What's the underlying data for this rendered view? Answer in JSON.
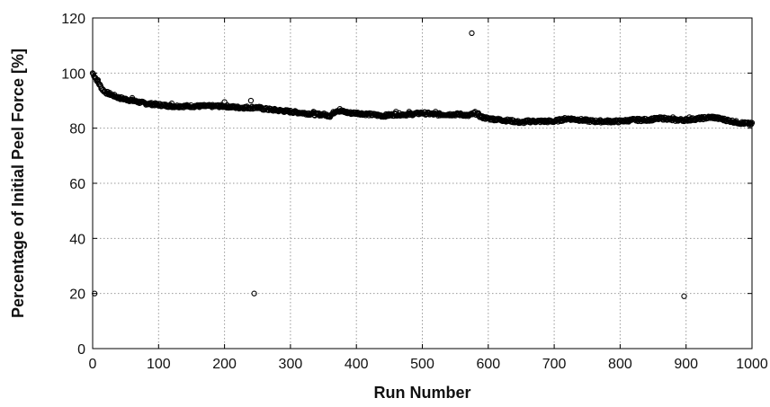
{
  "chart_data": {
    "type": "scatter",
    "title": "",
    "xlabel": "Run Number",
    "ylabel": "Percentage of Initial Peel Force [%]",
    "xlim": [
      0,
      1000
    ],
    "ylim": [
      0,
      120
    ],
    "xticks": [
      0,
      100,
      200,
      300,
      400,
      500,
      600,
      700,
      800,
      900,
      1000
    ],
    "yticks": [
      0,
      20,
      40,
      60,
      80,
      100,
      120
    ],
    "grid": true,
    "legend": "none",
    "marker": "open-circle",
    "trend_series": {
      "x": [
        0,
        5,
        10,
        15,
        20,
        30,
        40,
        50,
        60,
        80,
        100,
        120,
        150,
        180,
        200,
        220,
        240,
        250,
        260,
        280,
        300,
        320,
        340,
        350,
        360,
        370,
        380,
        390,
        400,
        420,
        440,
        460,
        480,
        500,
        520,
        540,
        560,
        570,
        580,
        590,
        600,
        620,
        640,
        650,
        660,
        680,
        700,
        720,
        740,
        760,
        780,
        800,
        820,
        840,
        860,
        870,
        880,
        900,
        920,
        940,
        960,
        980,
        1000
      ],
      "y": [
        100,
        98,
        96,
        94,
        93,
        92,
        91,
        90.5,
        90,
        89,
        88.5,
        88,
        88,
        88,
        88,
        87.5,
        87.5,
        87.5,
        87,
        86.5,
        86,
        85.5,
        85,
        85,
        84.5,
        86.5,
        86,
        85.5,
        85.5,
        85,
        84.5,
        85,
        85,
        85.5,
        85,
        85,
        85,
        84.5,
        85.5,
        84,
        83.5,
        83,
        82.5,
        82,
        82.5,
        82.5,
        82.5,
        83.5,
        83,
        82.5,
        82.5,
        82.5,
        83,
        83,
        83.5,
        83.5,
        83,
        83,
        83.5,
        84,
        83,
        82,
        81.5
      ]
    },
    "outliers": {
      "x": [
        3,
        8,
        245,
        575,
        897
      ],
      "y": [
        20,
        97.5,
        20,
        114.5,
        19
      ]
    }
  }
}
